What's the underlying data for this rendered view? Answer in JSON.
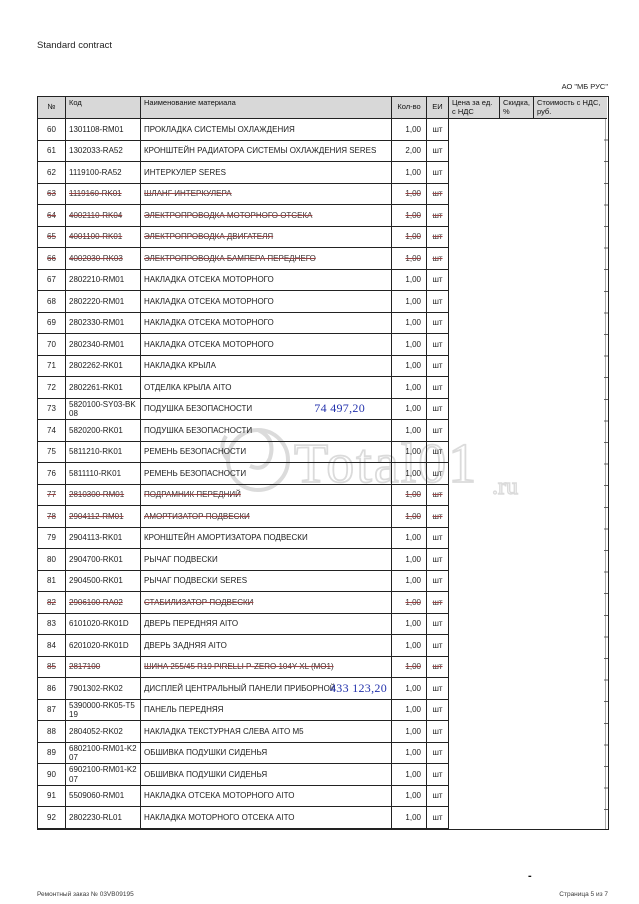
{
  "page": {
    "top_left_label": "Standard contract",
    "company": "АО \"МБ РУС\"",
    "footer_left": "Ремонтный заказ № 03VB09195",
    "footer_right": "Страница 5 из 7",
    "footer_dash": "-"
  },
  "watermark": {
    "text": "Total01",
    "suffix": ".ru"
  },
  "colors": {
    "strike_line": "#9a4343",
    "annotation_blue": "#2433ad",
    "header_bg": "#d8d8d8",
    "border": "#222222",
    "watermark_gray": "#c9c9c9"
  },
  "table": {
    "headers": [
      "№",
      "Код",
      "Наименование материала",
      "Кол-во",
      "ЕИ",
      "Цена за ед. с НДС",
      "Скидка, %",
      "Стоимость с НДС, руб."
    ],
    "rows": [
      {
        "n": "60",
        "code": "1301108-RM01",
        "name": "ПРОКЛАДКА СИСТЕМЫ ОХЛАЖДЕНИЯ",
        "qty": "1,00",
        "unit": "шт",
        "struck": false
      },
      {
        "n": "61",
        "code": "1302033-RA52",
        "name": "КРОНШТЕЙН РАДИАТОРА СИСТЕМЫ ОХЛАЖДЕНИЯ SERES",
        "qty": "2,00",
        "unit": "шт",
        "struck": false
      },
      {
        "n": "62",
        "code": "1119100-RA52",
        "name": "ИНТЕРКУЛЕР SERES",
        "qty": "1,00",
        "unit": "шт",
        "struck": false
      },
      {
        "n": "63",
        "code": "1119160-RK01",
        "name": "ШЛАНГ ИНТЕРКУЛЕРА",
        "qty": "1,00",
        "unit": "шт",
        "struck": true
      },
      {
        "n": "64",
        "code": "4002110-RK04",
        "name": "ЭЛЕКТРОПРОВОДКА МОТОРНОГО ОТСЕКА",
        "qty": "1,00",
        "unit": "шт",
        "struck": true
      },
      {
        "n": "65",
        "code": "4001100-RK01",
        "name": "ЭЛЕКТРОПРОВОДКА ДВИГАТЕЛЯ",
        "qty": "1,00",
        "unit": "шт",
        "struck": true
      },
      {
        "n": "66",
        "code": "4002030-RK03",
        "name": "ЭЛЕКТРОПРОВОДКА БАМПЕРА ПЕРЕДНЕГО",
        "qty": "1,00",
        "unit": "шт",
        "struck": true
      },
      {
        "n": "67",
        "code": "2802210-RM01",
        "name": "НАКЛАДКА ОТСЕКА МОТОРНОГО",
        "qty": "1,00",
        "unit": "шт",
        "struck": false
      },
      {
        "n": "68",
        "code": "2802220-RM01",
        "name": "НАКЛАДКА ОТСЕКА МОТОРНОГО",
        "qty": "1,00",
        "unit": "шт",
        "struck": false
      },
      {
        "n": "69",
        "code": "2802330-RM01",
        "name": "НАКЛАДКА ОТСЕКА МОТОРНОГО",
        "qty": "1,00",
        "unit": "шт",
        "struck": false
      },
      {
        "n": "70",
        "code": "2802340-RM01",
        "name": "НАКЛАДКА ОТСЕКА МОТОРНОГО",
        "qty": "1,00",
        "unit": "шт",
        "struck": false
      },
      {
        "n": "71",
        "code": "2802262-RK01",
        "name": "НАКЛАДКА КРЫЛА",
        "qty": "1,00",
        "unit": "шт",
        "struck": false
      },
      {
        "n": "72",
        "code": "2802261-RK01",
        "name": "ОТДЕЛКА КРЫЛА AITO",
        "qty": "1,00",
        "unit": "шт",
        "struck": false
      },
      {
        "n": "73",
        "code": "5820100-SY03-BK08",
        "name": "ПОДУШКА БЕЗОПАСНОСТИ",
        "qty": "1,00",
        "unit": "шт",
        "struck": false,
        "note": "74 497,20",
        "note_pos": "mid"
      },
      {
        "n": "74",
        "code": "5820200-RK01",
        "name": "ПОДУШКА БЕЗОПАСНОСТИ",
        "qty": "1,00",
        "unit": "шт",
        "struck": false
      },
      {
        "n": "75",
        "code": "5811210-RK01",
        "name": "РЕМЕНЬ БЕЗОПАСНОСТИ",
        "qty": "1,00",
        "unit": "шт",
        "struck": false
      },
      {
        "n": "76",
        "code": "5811110-RK01",
        "name": "РЕМЕНЬ БЕЗОПАСНОСТИ",
        "qty": "1,00",
        "unit": "шт",
        "struck": false
      },
      {
        "n": "77",
        "code": "2810300-RM01",
        "name": "ПОДРАМНИК ПЕРЕДНИЙ",
        "qty": "1,00",
        "unit": "шт",
        "struck": true
      },
      {
        "n": "78",
        "code": "2904112-RM01",
        "name": "АМОРТИЗАТОР ПОДВЕСКИ",
        "qty": "1,00",
        "unit": "шт",
        "struck": true
      },
      {
        "n": "79",
        "code": "2904113-RK01",
        "name": "КРОНШТЕЙН АМОРТИЗАТОРА ПОДВЕСКИ",
        "qty": "1,00",
        "unit": "шт",
        "struck": false
      },
      {
        "n": "80",
        "code": "2904700-RK01",
        "name": "РЫЧАГ ПОДВЕСКИ",
        "qty": "1,00",
        "unit": "шт",
        "struck": false
      },
      {
        "n": "81",
        "code": "2904500-RK01",
        "name": "РЫЧАГ ПОДВЕСКИ SERES",
        "qty": "1,00",
        "unit": "шт",
        "struck": false
      },
      {
        "n": "82",
        "code": "2906100-RA02",
        "name": "СТАБИЛИЗАТОР ПОДВЕСКИ",
        "qty": "1,00",
        "unit": "шт",
        "struck": true
      },
      {
        "n": "83",
        "code": "6101020-RK01D",
        "name": "ДВЕРЬ ПЕРЕДНЯЯ AITO",
        "qty": "1,00",
        "unit": "шт",
        "struck": false
      },
      {
        "n": "84",
        "code": "6201020-RK01D",
        "name": "ДВЕРЬ ЗАДНЯЯ AITO",
        "qty": "1,00",
        "unit": "шт",
        "struck": false
      },
      {
        "n": "85",
        "code": "2817100",
        "name": "ШИНА 255/45 R19 PIRELLI P-ZERO 104Y XL (MO1)",
        "qty": "1,00",
        "unit": "шт",
        "struck": true
      },
      {
        "n": "86",
        "code": "7901302-RK02",
        "name": "ДИСПЛЕЙ ЦЕНТРАЛЬНЫЙ ПАНЕЛИ ПРИБОРНОЙ",
        "qty": "1,00",
        "unit": "шт",
        "struck": false,
        "note": "433 123,20",
        "note_pos": "right"
      },
      {
        "n": "87",
        "code": "5390000-RK05-T519",
        "name": "ПАНЕЛЬ ПЕРЕДНЯЯ",
        "qty": "1,00",
        "unit": "шт",
        "struck": false
      },
      {
        "n": "88",
        "code": "2804052-RK02",
        "name": "НАКЛАДКА ТЕКСТУРНАЯ СЛЕВА  AITO M5",
        "qty": "1,00",
        "unit": "шт",
        "struck": false
      },
      {
        "n": "89",
        "code": "6802100-RM01-K207",
        "name": "ОБШИВКА ПОДУШКИ СИДЕНЬЯ",
        "qty": "1,00",
        "unit": "шт",
        "struck": false
      },
      {
        "n": "90",
        "code": "6902100-RM01-K207",
        "name": "ОБШИВКА ПОДУШКИ СИДЕНЬЯ",
        "qty": "1,00",
        "unit": "шт",
        "struck": false
      },
      {
        "n": "91",
        "code": "5509060-RM01",
        "name": "НАКЛАДКА ОТСЕКА МОТОРНОГО AITO",
        "qty": "1,00",
        "unit": "шт",
        "struck": false
      },
      {
        "n": "92",
        "code": "2802230-RL01",
        "name": "НАКЛАДКА МОТОРНОГО ОТСЕКА  AITO",
        "qty": "1,00",
        "unit": "шт",
        "struck": false
      }
    ]
  }
}
